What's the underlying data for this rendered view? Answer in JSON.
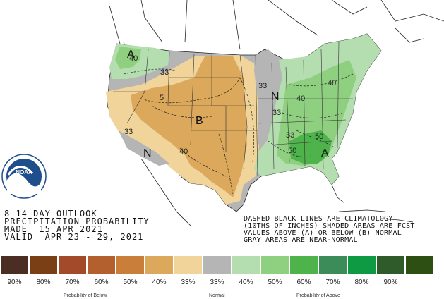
{
  "title": {
    "line1": "8-14 DAY OUTLOOK",
    "line2": "PRECIPITATION PROBABILITY",
    "line3": "MADE  15 APR 2021",
    "line4": "VALID  APR 23 - 29, 2021"
  },
  "note": {
    "line1": "DASHED BLACK LINES ARE CLIMATOLOGY",
    "line2": "(10THS OF INCHES) SHADED AREAS ARE FCST",
    "line3": "VALUES ABOVE (A) OR BELOW (B) NORMAL",
    "line4": "GRAY AREAS ARE NEAR-NORMAL"
  },
  "logo": {
    "text": "NOAA"
  },
  "map_labels": {
    "above_letter": "A",
    "below_letter": "B",
    "normal_letter": "N"
  },
  "contour_labels": [
    "40",
    "33",
    "33",
    "5",
    "40",
    "33",
    "33",
    "40",
    "50",
    "50",
    "40",
    "33"
  ],
  "legend": {
    "items": [
      {
        "label": "90%",
        "color": "#4a2e24"
      },
      {
        "label": "80%",
        "color": "#7b3f16"
      },
      {
        "label": "70%",
        "color": "#a24a2a"
      },
      {
        "label": "60%",
        "color": "#b45f2e"
      },
      {
        "label": "50%",
        "color": "#c97f3a"
      },
      {
        "label": "40%",
        "color": "#dba85c"
      },
      {
        "label": "33%",
        "color": "#f0d49a"
      },
      {
        "label": "33%",
        "color": "#b5b5b5"
      },
      {
        "label": "40%",
        "color": "#b5deb0"
      },
      {
        "label": "50%",
        "color": "#8fcf80"
      },
      {
        "label": "60%",
        "color": "#4db34a"
      },
      {
        "label": "70%",
        "color": "#3c8c5a"
      },
      {
        "label": "80%",
        "color": "#0e9a43"
      },
      {
        "label": "90%",
        "color": "#2f5a2a"
      },
      {
        "label": "",
        "color": "#2d4f14"
      }
    ],
    "below_caption": "Probability of Below",
    "normal_caption": "Normal",
    "above_caption": "Probability of Above"
  }
}
